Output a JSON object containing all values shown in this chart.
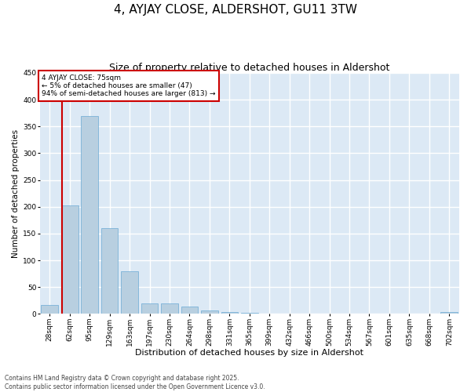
{
  "title": "4, AYJAY CLOSE, ALDERSHOT, GU11 3TW",
  "subtitle": "Size of property relative to detached houses in Aldershot",
  "xlabel": "Distribution of detached houses by size in Aldershot",
  "ylabel": "Number of detached properties",
  "categories": [
    "28sqm",
    "62sqm",
    "95sqm",
    "129sqm",
    "163sqm",
    "197sqm",
    "230sqm",
    "264sqm",
    "298sqm",
    "331sqm",
    "365sqm",
    "399sqm",
    "432sqm",
    "466sqm",
    "500sqm",
    "534sqm",
    "567sqm",
    "601sqm",
    "635sqm",
    "668sqm",
    "702sqm"
  ],
  "values": [
    17,
    203,
    370,
    160,
    80,
    20,
    20,
    13,
    7,
    4,
    2,
    0,
    0,
    0,
    0,
    0,
    0,
    0,
    0,
    0,
    3
  ],
  "bar_color": "#b8cfe0",
  "bar_edge_color": "#6aaad4",
  "background_color": "#dce9f5",
  "grid_color": "#ffffff",
  "vline_color": "#cc0000",
  "vline_x": 0.6,
  "annotation_text": "4 AYJAY CLOSE: 75sqm\n← 5% of detached houses are smaller (47)\n94% of semi-detached houses are larger (813) →",
  "annotation_box_color": "#cc0000",
  "ylim": [
    0,
    450
  ],
  "yticks": [
    0,
    50,
    100,
    150,
    200,
    250,
    300,
    350,
    400,
    450
  ],
  "footer": "Contains HM Land Registry data © Crown copyright and database right 2025.\nContains public sector information licensed under the Open Government Licence v3.0.",
  "title_fontsize": 11,
  "subtitle_fontsize": 9,
  "xlabel_fontsize": 8,
  "ylabel_fontsize": 7.5,
  "tick_fontsize": 6.5,
  "footer_fontsize": 5.5,
  "ann_fontsize": 6.5
}
